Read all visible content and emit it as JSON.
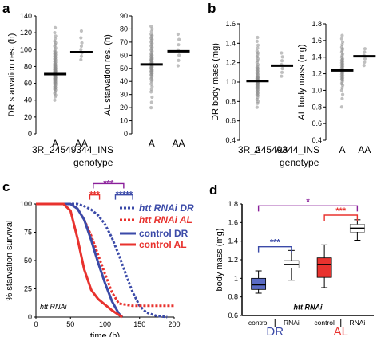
{
  "panels": {
    "a": "a",
    "b": "b",
    "c": "c",
    "d": "d"
  },
  "colors": {
    "blue": "#3b4aa8",
    "red": "#e8322e",
    "purple": "#8a1f9a",
    "grey": "#8c8c8c",
    "box_blue": "#5a6bc4",
    "box_red": "#e8322e"
  },
  "chart_data": [
    {
      "id": "a-left",
      "type": "scatter",
      "ylabel": "DR starvation res. (h)",
      "ylim": [
        0,
        140
      ],
      "yticks": [
        0,
        20,
        40,
        60,
        80,
        100,
        120,
        140
      ],
      "categories": [
        "A",
        "AA"
      ],
      "medians": [
        71,
        97
      ],
      "points": [
        [
          40,
          44,
          46,
          48,
          50,
          52,
          53,
          54,
          55,
          56,
          57,
          58,
          59,
          60,
          60,
          61,
          62,
          62,
          63,
          64,
          64,
          65,
          65,
          66,
          66,
          67,
          67,
          68,
          68,
          69,
          69,
          70,
          70,
          70,
          71,
          71,
          72,
          72,
          72,
          73,
          73,
          74,
          74,
          75,
          75,
          76,
          76,
          77,
          77,
          78,
          78,
          79,
          80,
          80,
          81,
          82,
          82,
          83,
          84,
          85,
          86,
          87,
          88,
          89,
          90,
          91,
          92,
          93,
          94,
          95,
          96,
          97,
          98,
          100,
          102,
          104,
          106,
          108,
          110,
          113,
          116,
          120,
          126
        ],
        [
          88,
          92,
          96,
          100,
          104,
          108,
          114,
          122
        ]
      ]
    },
    {
      "id": "a-right",
      "type": "scatter",
      "ylabel": "AL starvation res. (h)",
      "ylim": [
        0,
        90
      ],
      "yticks": [
        0,
        10,
        20,
        30,
        40,
        50,
        60,
        70,
        80,
        90
      ],
      "categories": [
        "A",
        "AA"
      ],
      "medians": [
        53,
        63
      ],
      "points": [
        [
          20,
          24,
          28,
          32,
          34,
          36,
          38,
          40,
          41,
          42,
          43,
          44,
          45,
          45,
          46,
          47,
          47,
          48,
          48,
          49,
          49,
          50,
          50,
          51,
          51,
          52,
          52,
          53,
          53,
          54,
          54,
          55,
          55,
          56,
          56,
          57,
          57,
          58,
          58,
          59,
          60,
          60,
          61,
          62,
          63,
          64,
          65,
          66,
          67,
          68,
          69,
          70,
          71,
          72,
          73,
          74,
          75,
          76,
          78,
          80,
          82
        ],
        [
          52,
          56,
          60,
          64,
          68,
          72,
          76
        ]
      ]
    },
    {
      "id": "b-left",
      "type": "scatter",
      "ylabel": "DR body mass (mg)",
      "ylim": [
        0.4,
        1.6
      ],
      "yticks": [
        0.4,
        0.6,
        0.8,
        1.0,
        1.2,
        1.4,
        1.6
      ],
      "categories": [
        "A",
        "AA"
      ],
      "medians": [
        1.01,
        1.17
      ],
      "points": [
        [
          0.74,
          0.78,
          0.8,
          0.82,
          0.84,
          0.86,
          0.87,
          0.88,
          0.89,
          0.9,
          0.91,
          0.92,
          0.93,
          0.94,
          0.94,
          0.95,
          0.96,
          0.96,
          0.97,
          0.97,
          0.98,
          0.98,
          0.99,
          0.99,
          1.0,
          1.0,
          1.01,
          1.01,
          1.02,
          1.02,
          1.03,
          1.03,
          1.04,
          1.04,
          1.05,
          1.05,
          1.06,
          1.07,
          1.08,
          1.09,
          1.1,
          1.11,
          1.12,
          1.13,
          1.14,
          1.15,
          1.16,
          1.18,
          1.2,
          1.22,
          1.24,
          1.26,
          1.28,
          1.3,
          1.32,
          1.35,
          1.38,
          1.42,
          1.46
        ],
        [
          1.06,
          1.1,
          1.14,
          1.18,
          1.22,
          1.26,
          1.3
        ]
      ]
    },
    {
      "id": "b-right",
      "type": "scatter",
      "ylabel": "AL body mass (mg)",
      "ylim": [
        0.4,
        1.8
      ],
      "yticks": [
        0.4,
        0.6,
        0.8,
        1.0,
        1.2,
        1.4,
        1.6,
        1.8
      ],
      "categories": [
        "A",
        "AA"
      ],
      "medians": [
        1.24,
        1.41
      ],
      "points": [
        [
          0.8,
          0.9,
          0.95,
          1.0,
          1.03,
          1.06,
          1.08,
          1.1,
          1.12,
          1.13,
          1.14,
          1.15,
          1.16,
          1.17,
          1.18,
          1.19,
          1.2,
          1.21,
          1.22,
          1.23,
          1.24,
          1.24,
          1.25,
          1.26,
          1.27,
          1.28,
          1.29,
          1.3,
          1.31,
          1.32,
          1.33,
          1.34,
          1.35,
          1.36,
          1.37,
          1.38,
          1.4,
          1.42,
          1.44,
          1.46,
          1.48,
          1.5,
          1.52,
          1.55,
          1.58,
          1.62,
          1.66
        ],
        [
          1.3,
          1.34,
          1.38,
          1.42,
          1.46,
          1.5
        ]
      ]
    },
    {
      "id": "c",
      "type": "line",
      "xlabel": "time (h)",
      "ylabel": "% starvation survival",
      "xlim": [
        0,
        200
      ],
      "ylim": [
        0,
        100
      ],
      "xticks": [
        0,
        50,
        100,
        150,
        200
      ],
      "yticks": [
        0,
        25,
        50,
        75,
        100
      ],
      "annotation": "htt RNAi",
      "legend_position": "right",
      "series": [
        {
          "name": "htt RNAi DR",
          "color": "blue",
          "dash": true,
          "x": [
            0,
            60,
            70,
            80,
            90,
            100,
            110,
            120,
            130,
            140,
            150,
            160,
            175,
            190
          ],
          "y": [
            100,
            100,
            98,
            95,
            90,
            82,
            70,
            55,
            38,
            22,
            10,
            4,
            1,
            0
          ]
        },
        {
          "name": "htt RNAi AL",
          "color": "red",
          "dash": true,
          "x": [
            0,
            50,
            60,
            70,
            80,
            90,
            100,
            110,
            120,
            140,
            160,
            180,
            200
          ],
          "y": [
            100,
            100,
            96,
            86,
            72,
            55,
            38,
            22,
            12,
            10,
            10,
            10,
            10
          ]
        },
        {
          "name": "control DR",
          "color": "blue",
          "dash": false,
          "x": [
            0,
            50,
            60,
            70,
            80,
            90,
            100,
            110,
            120,
            125
          ],
          "y": [
            100,
            100,
            96,
            86,
            68,
            48,
            30,
            14,
            3,
            0
          ]
        },
        {
          "name": "control AL",
          "color": "red",
          "dash": false,
          "x": [
            0,
            40,
            50,
            60,
            70,
            80,
            90,
            100,
            110,
            120,
            125
          ],
          "y": [
            100,
            100,
            94,
            70,
            42,
            24,
            16,
            11,
            6,
            2,
            0
          ]
        }
      ],
      "brackets": [
        {
          "label": "***",
          "color": "red",
          "x1": 78,
          "x2": 92,
          "y": 108
        },
        {
          "label": "*****",
          "color": "blue",
          "x1": 115,
          "x2": 140,
          "y": 108
        },
        {
          "label": "***",
          "color": "purple",
          "x1": 83,
          "x2": 127,
          "y": 118
        }
      ]
    },
    {
      "id": "d",
      "type": "box",
      "ylabel": "body mass (mg)",
      "ylim": [
        0.6,
        1.8
      ],
      "yticks": [
        0.6,
        0.8,
        1.0,
        1.2,
        1.4,
        1.6,
        1.8
      ],
      "yticklabels": [
        "0.6",
        "0.8",
        "1",
        "1.2",
        "1.4",
        "1.6",
        "1.8"
      ],
      "annotation": "htt RNAi",
      "categories": [
        "control",
        "RNAi",
        "control",
        "RNAi"
      ],
      "groups": [
        "DR",
        "AL"
      ],
      "boxes": [
        {
          "q1": 0.88,
          "median": 0.93,
          "q3": 1.0,
          "min": 0.84,
          "max": 1.08,
          "color": "box_blue",
          "pattern": false
        },
        {
          "q1": 1.11,
          "median": 1.15,
          "q3": 1.19,
          "min": 0.98,
          "max": 1.3,
          "color": "box_blue",
          "pattern": true
        },
        {
          "q1": 1.01,
          "median": 1.15,
          "q3": 1.22,
          "min": 0.9,
          "max": 1.36,
          "color": "box_red",
          "pattern": false
        },
        {
          "q1": 1.5,
          "median": 1.54,
          "q3": 1.58,
          "min": 1.41,
          "max": 1.63,
          "color": "box_red",
          "pattern": true
        }
      ],
      "brackets": [
        {
          "label": "***",
          "color": "blue",
          "from": 0,
          "to": 1,
          "y": 1.34
        },
        {
          "label": "***",
          "color": "red",
          "from": 2,
          "to": 3,
          "y": 1.68
        },
        {
          "label": "*",
          "color": "purple",
          "from": 0,
          "to": 3,
          "y": 1.78
        }
      ]
    }
  ],
  "genotype_caption": {
    "a_marker": "3R_24549344_INS",
    "a_sub": "genotype",
    "b_marker": "3R_24549344_INS",
    "b_sub": "genotype"
  }
}
